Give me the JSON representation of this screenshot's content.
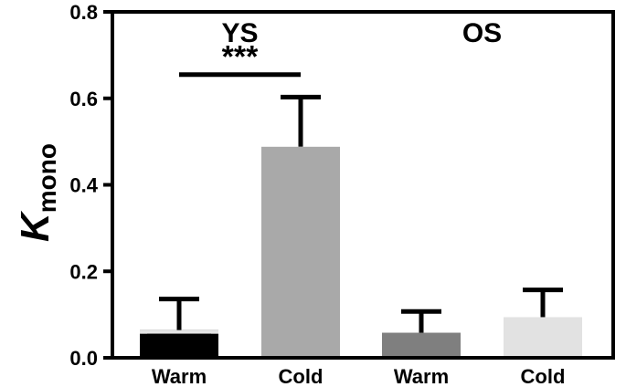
{
  "chart_data": {
    "type": "bar",
    "title": "",
    "ylabel_main": "K",
    "ylabel_sub": "mono",
    "xlabel": "",
    "ylim": [
      0,
      0.8
    ],
    "yticks": [
      0.0,
      0.2,
      0.4,
      0.6,
      0.8
    ],
    "ytick_labels": [
      "0.0",
      "0.2",
      "0.4",
      "0.6",
      "0.8"
    ],
    "grid": false,
    "groups": [
      {
        "name": "YS",
        "categories": [
          "Warm",
          "Cold"
        ]
      },
      {
        "name": "OS",
        "categories": [
          "Warm",
          "Cold"
        ]
      }
    ],
    "bars": [
      {
        "group": "YS",
        "category": "Warm",
        "value": 0.064,
        "error": 0.072,
        "color": "#000000",
        "cap_color": "#e4e4e4"
      },
      {
        "group": "YS",
        "category": "Cold",
        "value": 0.488,
        "error": 0.115,
        "color": "#a9a9a9"
      },
      {
        "group": "OS",
        "category": "Warm",
        "value": 0.058,
        "error": 0.049,
        "color": "#7f7f7f"
      },
      {
        "group": "OS",
        "category": "Cold",
        "value": 0.094,
        "error": 0.063,
        "color": "#e2e2e2"
      }
    ],
    "significance": [
      {
        "from_bar": 0,
        "to_bar": 1,
        "level": 0.655,
        "label": "***"
      }
    ]
  }
}
